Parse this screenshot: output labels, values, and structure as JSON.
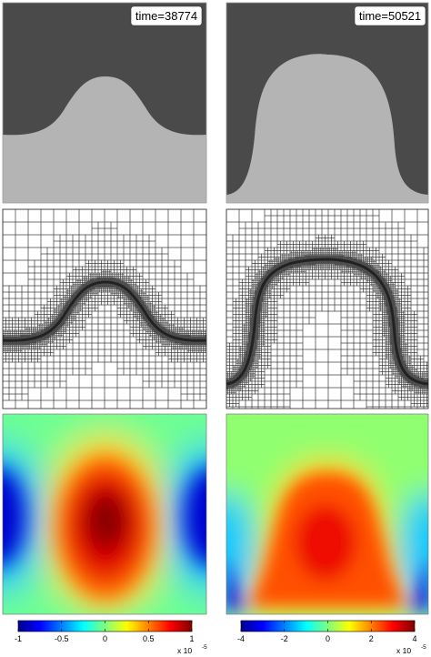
{
  "columns": [
    {
      "time_label": "time=38774",
      "colorbar": {
        "ticks": [
          "-1",
          "-0.5",
          "0",
          "0.5",
          "1"
        ],
        "tick_values": [
          -1,
          -0.5,
          0,
          0.5,
          1
        ],
        "range": [
          -1,
          1
        ],
        "multiplier": "x 10",
        "exponent": "-5"
      }
    },
    {
      "time_label": "time=50521",
      "colorbar": {
        "ticks": [
          "-4",
          "-2",
          "0",
          "2",
          "4"
        ],
        "tick_values": [
          -4,
          -2,
          0,
          2,
          4
        ],
        "range": [
          -4,
          4
        ],
        "multiplier": "x 10",
        "exponent": "-5"
      }
    }
  ],
  "colors": {
    "phase_dark": "#4a4a4a",
    "phase_light": "#b4b4b4",
    "mesh_line": "#2b2b2b",
    "colormap": "jet"
  }
}
